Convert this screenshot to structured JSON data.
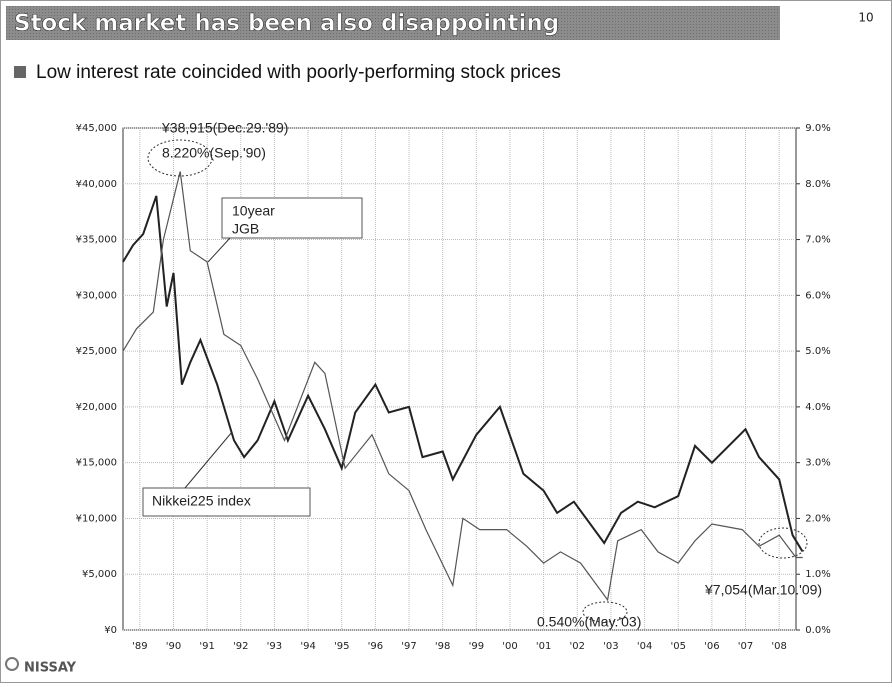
{
  "slide": {
    "title": "Stock market has been also disappointing",
    "page_number": "10",
    "bullet": "Low interest rate coincided with poorly-performing stock prices",
    "logo": "NISSAY"
  },
  "chart_data": {
    "type": "line",
    "xlim": [
      1989,
      2009
    ],
    "xticks": [
      {
        "value": 1989.5,
        "label": "'89"
      },
      {
        "value": 1990.5,
        "label": "'90"
      },
      {
        "value": 1991.5,
        "label": "'91"
      },
      {
        "value": 1992.5,
        "label": "'92"
      },
      {
        "value": 1993.5,
        "label": "'93"
      },
      {
        "value": 1994.5,
        "label": "'94"
      },
      {
        "value": 1995.5,
        "label": "'95"
      },
      {
        "value": 1996.5,
        "label": "'96"
      },
      {
        "value": 1997.5,
        "label": "'97"
      },
      {
        "value": 1998.5,
        "label": "'98"
      },
      {
        "value": 1999.5,
        "label": "'99"
      },
      {
        "value": 2000.5,
        "label": "'00"
      },
      {
        "value": 2001.5,
        "label": "'01"
      },
      {
        "value": 2002.5,
        "label": "'02"
      },
      {
        "value": 2003.5,
        "label": "'03"
      },
      {
        "value": 2004.5,
        "label": "'04"
      },
      {
        "value": 2005.5,
        "label": "'05"
      },
      {
        "value": 2006.5,
        "label": "'06"
      },
      {
        "value": 2007.5,
        "label": "'07"
      },
      {
        "value": 2008.5,
        "label": "'08"
      }
    ],
    "ylim": [
      0,
      45000
    ],
    "yticks": [
      {
        "value": 0,
        "label": "¥0"
      },
      {
        "value": 5000,
        "label": "¥5,000"
      },
      {
        "value": 10000,
        "label": "¥10,000"
      },
      {
        "value": 15000,
        "label": "¥15,000"
      },
      {
        "value": 20000,
        "label": "¥20,000"
      },
      {
        "value": 25000,
        "label": "¥25,000"
      },
      {
        "value": 30000,
        "label": "¥30,000"
      },
      {
        "value": 35000,
        "label": "¥35,000"
      },
      {
        "value": 40000,
        "label": "¥40,000"
      },
      {
        "value": 45000,
        "label": "¥45,000"
      }
    ],
    "y2lim": [
      0,
      9
    ],
    "y2ticks": [
      {
        "value": 0,
        "label": "0.0%"
      },
      {
        "value": 1,
        "label": "1.0%"
      },
      {
        "value": 2,
        "label": "2.0%"
      },
      {
        "value": 3,
        "label": "3.0%"
      },
      {
        "value": 4,
        "label": "4.0%"
      },
      {
        "value": 5,
        "label": "5.0%"
      },
      {
        "value": 6,
        "label": "6.0%"
      },
      {
        "value": 7,
        "label": "7.0%"
      },
      {
        "value": 8,
        "label": "8.0%"
      },
      {
        "value": 9,
        "label": "9.0%"
      }
    ],
    "grid": true,
    "series": [
      {
        "name": "Nikkei225 index",
        "color": "#222222",
        "axis": "y",
        "x": [
          1989.0,
          1989.3,
          1989.6,
          1989.99,
          1990.3,
          1990.5,
          1990.75,
          1991.0,
          1991.3,
          1991.8,
          1992.3,
          1992.6,
          1993.0,
          1993.5,
          1993.9,
          1994.5,
          1995.0,
          1995.5,
          1995.9,
          1996.5,
          1996.9,
          1997.5,
          1997.9,
          1998.5,
          1998.8,
          1999.5,
          2000.2,
          2000.9,
          2001.5,
          2001.9,
          2002.4,
          2003.3,
          2003.8,
          2004.3,
          2004.8,
          2005.5,
          2006.0,
          2006.5,
          2007.5,
          2007.9,
          2008.5,
          2008.9,
          2009.19
        ],
        "values": [
          33000,
          34500,
          35500,
          38915,
          29000,
          32000,
          22000,
          24000,
          26000,
          22000,
          17000,
          15500,
          17000,
          20500,
          17000,
          21000,
          18000,
          14500,
          19500,
          22000,
          19500,
          20000,
          15500,
          16000,
          13500,
          17500,
          20000,
          14000,
          12500,
          10500,
          11500,
          7800,
          10500,
          11500,
          11000,
          12000,
          16500,
          15000,
          18000,
          15500,
          13500,
          8500,
          7054
        ]
      },
      {
        "name": "10year JGB",
        "color": "#555555",
        "axis": "y2",
        "x": [
          1989.0,
          1989.4,
          1989.9,
          1990.2,
          1990.7,
          1991.0,
          1991.5,
          1992.0,
          1992.5,
          1993.0,
          1993.8,
          1994.7,
          1995.0,
          1995.6,
          1996.4,
          1996.9,
          1997.5,
          1998.0,
          1998.8,
          1999.1,
          1999.6,
          2000.4,
          2001.0,
          2001.5,
          2002.0,
          2002.6,
          2003.4,
          2003.7,
          2004.4,
          2004.9,
          2005.5,
          2006.0,
          2006.5,
          2007.4,
          2007.9,
          2008.5,
          2009.0,
          2009.2
        ],
        "values": [
          5.0,
          5.4,
          5.7,
          7.0,
          8.22,
          6.8,
          6.6,
          5.3,
          5.1,
          4.5,
          3.4,
          4.8,
          4.6,
          2.9,
          3.5,
          2.8,
          2.5,
          1.8,
          0.8,
          2.0,
          1.8,
          1.8,
          1.5,
          1.2,
          1.4,
          1.2,
          0.54,
          1.6,
          1.8,
          1.4,
          1.2,
          1.6,
          1.9,
          1.8,
          1.5,
          1.7,
          1.3,
          1.3
        ]
      }
    ],
    "annotations": [
      "¥38,915(Dec.29.'89)",
      "8.220%(Sep.'90)",
      "10year",
      "JGB",
      "Nikkei225 index",
      "0.540%(May.'03)",
      "¥7,054(Mar.10.'09)"
    ]
  }
}
